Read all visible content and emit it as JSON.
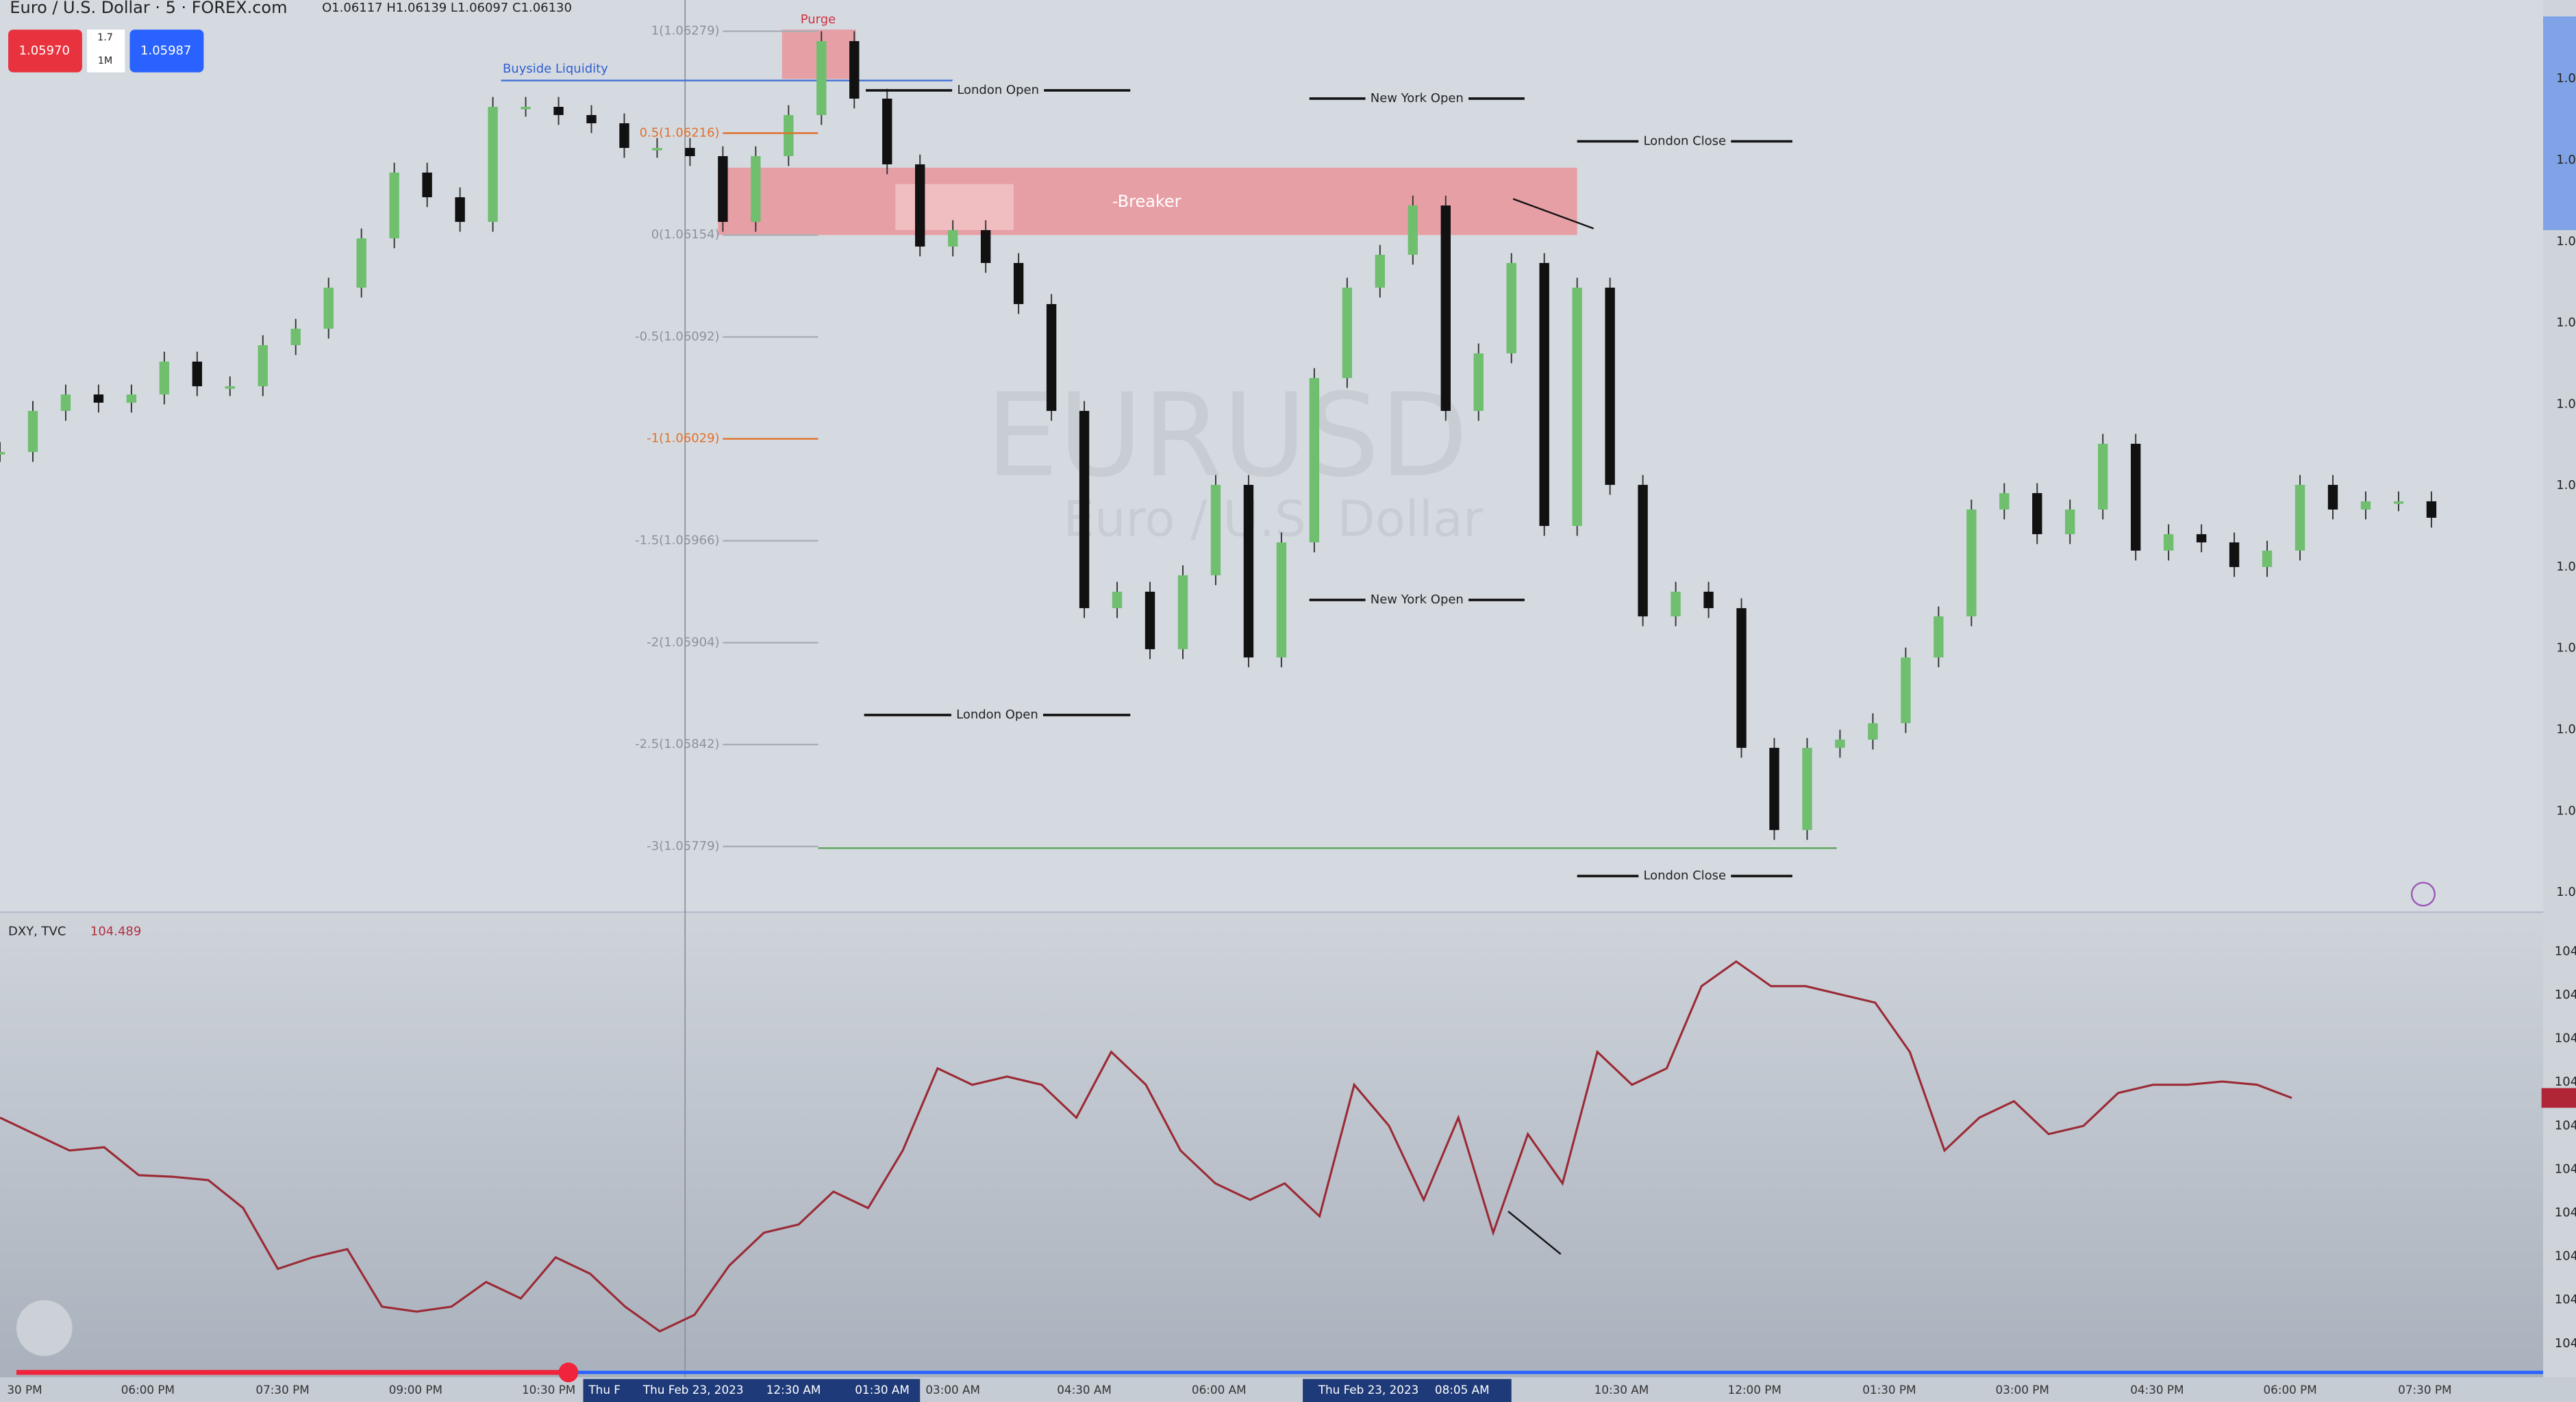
{
  "header": {
    "symbol": "Euro / U.S. Dollar · 5 · FOREX.com",
    "ohlc": "O1.06117 H1.06139 L1.06097 C1.06130",
    "sell": "1.05970",
    "spread": "1.7",
    "qty": "1M",
    "buy": "1.05987"
  },
  "watermark": {
    "ticker": "EURUSD",
    "name": "Euro / U.S. Dollar"
  },
  "annotations": {
    "purge": "Purge",
    "buyside": "Buyside Liquidity",
    "breaker": "-Breaker",
    "sessions": [
      "London Open",
      "New York Open",
      "London Close",
      "New York Open",
      "London Open",
      "London Close"
    ]
  },
  "fib_levels": [
    "1(1.06279)",
    "0.5(1.06216)",
    "0(1.06154)",
    "-0.5(1.06092)",
    "-1(1.06029)",
    "-1.5(1.05966)",
    "-2(1.05904)",
    "-2.5(1.05842)",
    "-3(1.05779)"
  ],
  "price_axis": {
    "ylim": [
      1.05744,
      1.06297
    ],
    "labels": [
      "1.0",
      "1.0",
      "1.0",
      "1.0",
      "1.0",
      "1.0",
      "1.0",
      "1.0",
      "1.0",
      "1.0",
      "1.0"
    ]
  },
  "closes": [
    1.06022,
    1.06047,
    1.06057,
    1.06052,
    1.06057,
    1.06077,
    1.06062,
    1.06062,
    1.06087,
    1.06097,
    1.06122,
    1.06152,
    1.06192,
    1.06177,
    1.06162,
    1.06232,
    1.06232,
    1.06227,
    1.06222,
    1.06207,
    1.06207,
    1.06202,
    1.06162,
    1.06202,
    1.06227,
    1.06272,
    1.06237,
    1.06197,
    1.06147,
    1.06157,
    1.06137,
    1.06112,
    1.06047,
    1.05927,
    1.05937,
    1.05902,
    1.05947,
    1.06002,
    1.05897,
    1.05967,
    1.06067,
    1.06122,
    1.06142,
    1.06172,
    1.06047,
    1.06082,
    1.06137,
    1.05977,
    1.06122,
    1.06002,
    1.05922,
    1.05937,
    1.05927,
    1.05842,
    1.05792,
    1.05842,
    1.05847,
    1.05857,
    1.05897,
    1.05922,
    1.05987,
    1.05997,
    1.05972,
    1.05987,
    1.06027,
    1.05962,
    1.05972,
    1.05967,
    1.05952,
    1.05962,
    1.06002,
    1.05987,
    1.05992,
    1.05992,
    1.05982
  ],
  "dxy": {
    "title": "DXY, TVC",
    "last": "104.489",
    "ylim": [
      103.841,
      104.921
    ],
    "axis_labels": [
      "104",
      "104",
      "104",
      "104",
      "104",
      "104",
      "104",
      "104",
      "104",
      "104"
    ],
    "values": [
      104.441,
      104.401,
      104.361,
      104.369,
      104.301,
      104.297,
      104.289,
      104.221,
      104.073,
      104.101,
      104.121,
      103.981,
      103.969,
      103.981,
      104.041,
      104.001,
      104.101,
      104.061,
      103.981,
      103.921,
      103.961,
      104.081,
      104.161,
      104.181,
      104.261,
      104.221,
      104.361,
      104.561,
      104.521,
      104.541,
      104.521,
      104.441,
      104.601,
      104.521,
      104.361,
      104.281,
      104.241,
      104.281,
      104.201,
      104.521,
      104.421,
      104.241,
      104.441,
      104.161,
      104.401,
      104.281,
      104.601,
      104.521,
      104.561,
      104.761,
      104.821,
      104.761,
      104.761,
      104.741,
      104.721,
      104.601,
      104.361,
      104.441,
      104.481,
      104.401,
      104.421,
      104.501,
      104.521,
      104.521,
      104.529,
      104.521,
      104.489
    ]
  },
  "time_axis": [
    "30 PM",
    "06:00 PM",
    "07:30 PM",
    "09:00 PM",
    "10:30 PM",
    "Thu F",
    "Thu Feb 23, 2023",
    "12:30 AM",
    "01:30 AM",
    "03:00 AM",
    "04:30 AM",
    "06:00 AM",
    "Thu Feb 23, 2023",
    "08:05 AM",
    "10:30 AM",
    "12:00 PM",
    "01:30 PM",
    "03:00 PM",
    "04:30 PM",
    "06:00 PM",
    "07:30 PM"
  ]
}
